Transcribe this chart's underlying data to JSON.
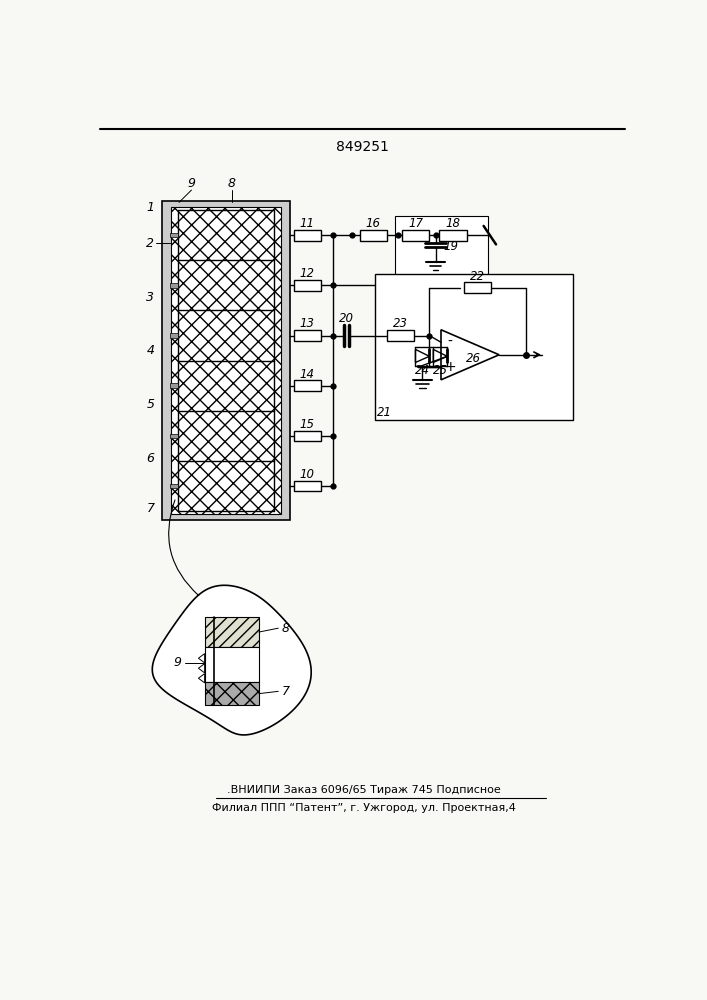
{
  "patent_number": "849251",
  "footer_line1": ".ВНИИПИ Заказ 6096/65 Тираж 745 Подписное",
  "footer_line2": "Филиал ППП “Патент”, г. Ужгород, ул. Проектная,4",
  "bg_color": "#f8f8f5"
}
